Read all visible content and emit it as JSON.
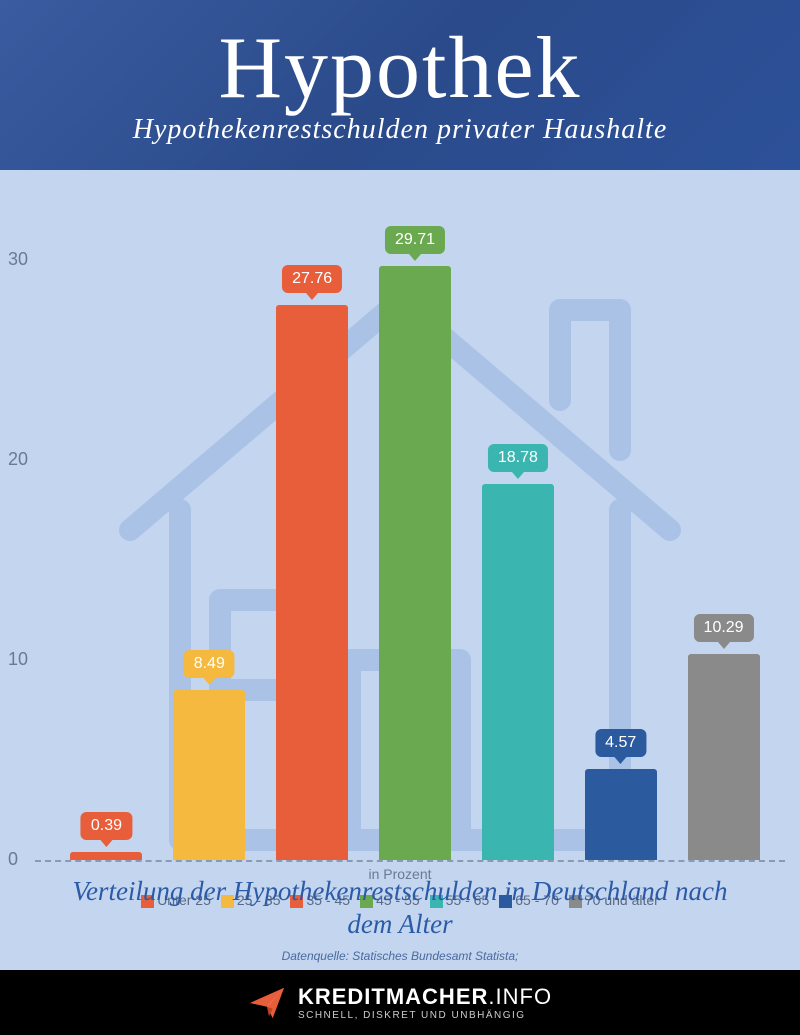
{
  "header": {
    "title": "Hypothek",
    "subtitle": "Hypothekenrestschulden privater Haushalte"
  },
  "chart": {
    "type": "bar",
    "ylim": [
      0,
      30
    ],
    "yticks": [
      0,
      10,
      20,
      30
    ],
    "grid_color": "#8a9ab5",
    "background_color": "#c3d5ef",
    "x_axis_label": "in Prozent",
    "label_fontsize": 14,
    "tick_fontsize": 18,
    "tick_color": "#6a7a95",
    "bar_width_ratio": 0.7,
    "house_outline_color": "#7aa0d5",
    "series": [
      {
        "label": "Unter 25",
        "value": 0.39,
        "color": "#e95e3a"
      },
      {
        "label": "25 - 35",
        "value": 8.49,
        "color": "#f4b93e"
      },
      {
        "label": "35 - 45",
        "value": 27.76,
        "color": "#e95e3a"
      },
      {
        "label": "45 - 55",
        "value": 29.71,
        "color": "#6aa94f"
      },
      {
        "label": "55 - 65",
        "value": 18.78,
        "color": "#3bb5b0"
      },
      {
        "label": "65 - 70",
        "value": 4.57,
        "color": "#2c5a9e"
      },
      {
        "label": "70 und älter",
        "value": 10.29,
        "color": "#8a8a8a"
      }
    ]
  },
  "caption": "Verteilung der Hypothekenrestschulden in Deutschland nach dem Alter",
  "source": "Datenquelle: Statisches Bundesamt Statista;",
  "footer": {
    "brand_bold": "KREDITMACHER",
    "brand_thin": ".INFO",
    "tagline": "SCHNELL, DISKRET UND UNBHÄNGIG",
    "icon_color": "#e95e3a"
  }
}
